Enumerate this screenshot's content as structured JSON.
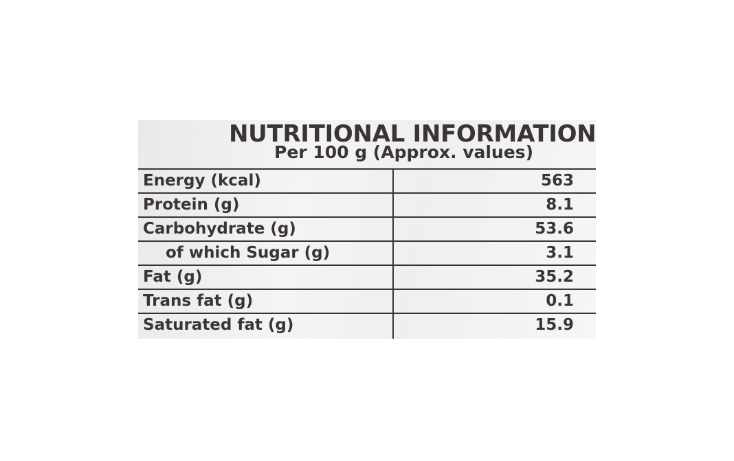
{
  "panel": {
    "title": "NUTRITIONAL INFORMATION",
    "subtitle": "Per 100 g (Approx. values)",
    "rows": [
      {
        "name": "Energy (kcal)",
        "value": "563"
      },
      {
        "name": "Protein (g)",
        "value": "8.1"
      },
      {
        "name": "Carbohydrate (g)",
        "value": "53.6"
      },
      {
        "name": "of which Sugar (g)",
        "value": "3.1"
      },
      {
        "name": "Fat (g)",
        "value": "35.2"
      },
      {
        "name": "Trans fat (g)",
        "value": "0.1"
      },
      {
        "name": "Saturated fat (g)",
        "value": "15.9"
      }
    ]
  }
}
